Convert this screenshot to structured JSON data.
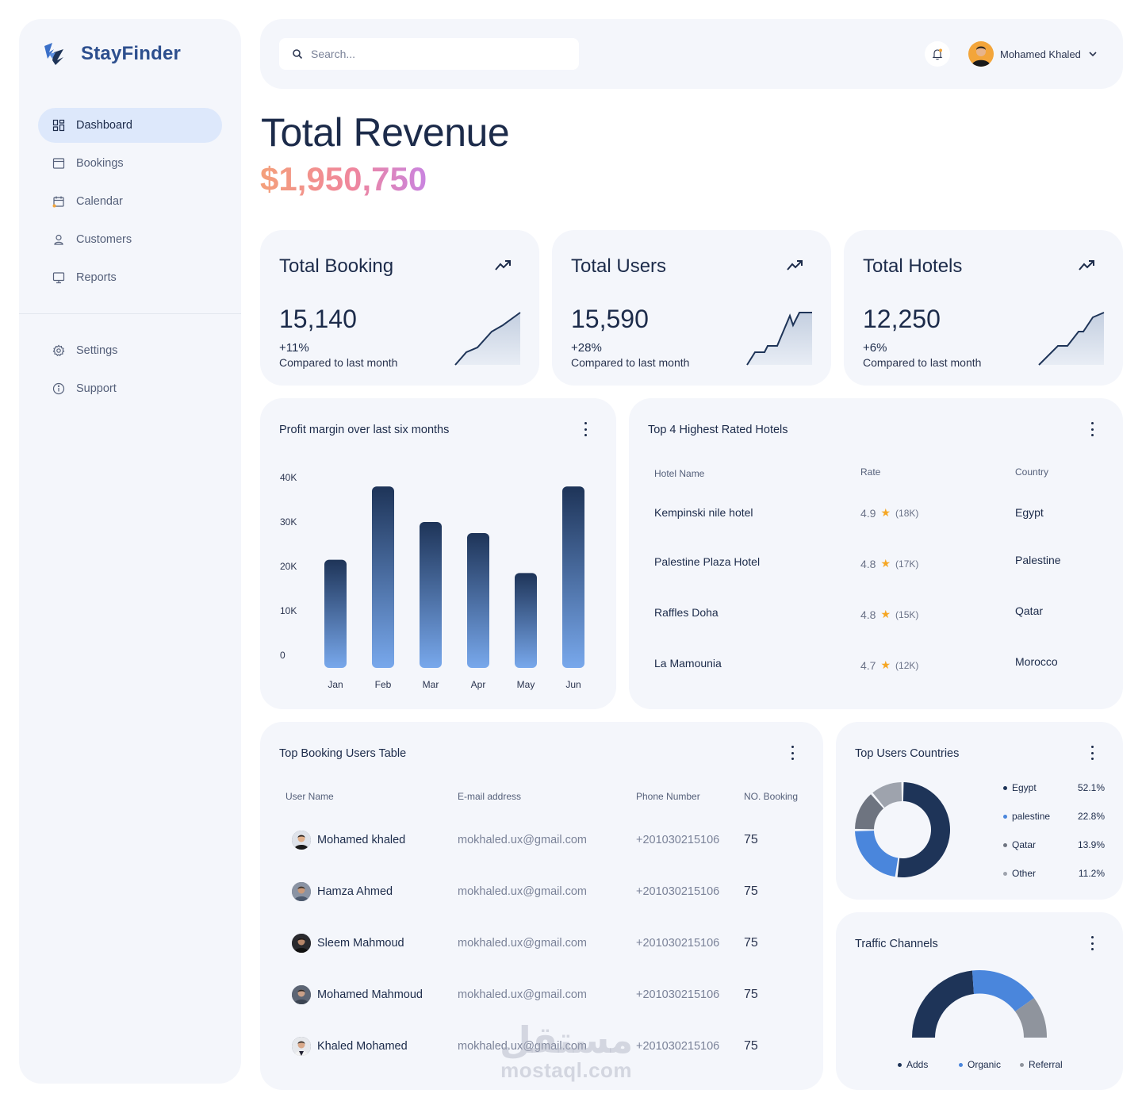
{
  "app": {
    "name": "StayFinder"
  },
  "sidebar": {
    "items": [
      {
        "label": "Dashboard",
        "icon": "dashboard-icon",
        "active": true
      },
      {
        "label": "Bookings",
        "icon": "bookings-icon"
      },
      {
        "label": "Calendar",
        "icon": "calendar-icon"
      },
      {
        "label": "Customers",
        "icon": "customers-icon"
      },
      {
        "label": "Reports",
        "icon": "reports-icon"
      }
    ],
    "bottom": [
      {
        "label": "Settings",
        "icon": "gear-icon"
      },
      {
        "label": "Support",
        "icon": "info-icon"
      }
    ]
  },
  "header": {
    "search_placeholder": "Search...",
    "user_name": "Mohamed Khaled"
  },
  "revenue": {
    "title": "Total Revenue",
    "amount": "$1,950,750"
  },
  "stats": [
    {
      "title": "Total Booking",
      "value": "15,140",
      "change": "+11%",
      "compare": "Compared to last month"
    },
    {
      "title": "Total Users",
      "value": "15,590",
      "change": "+28%",
      "compare": "Compared to last month"
    },
    {
      "title": "Total Hotels",
      "value": "12,250",
      "change": "+6%",
      "compare": "Compared to last month"
    }
  ],
  "profit": {
    "title": "Profit margin over last six months"
  },
  "chart_data": {
    "type": "bar",
    "title": "Profit margin over last six months",
    "categories": [
      "Jan",
      "Feb",
      "Mar",
      "Apr",
      "May",
      "Jun"
    ],
    "values": [
      21500,
      38000,
      30000,
      27500,
      18500,
      38000
    ],
    "ylim": [
      0,
      40000
    ],
    "yticks": [
      0,
      10000,
      20000,
      30000,
      40000
    ],
    "ytick_labels": [
      "0",
      "10K",
      "20K",
      "30K",
      "40K"
    ],
    "xlabel": "",
    "ylabel": "",
    "grid": false
  },
  "hotels": {
    "title": "Top 4 Highest Rated Hotels",
    "headers": {
      "name": "Hotel Name",
      "rate": "Rate",
      "country": "Country"
    },
    "rows": [
      {
        "name": "Kempinski nile hotel",
        "rate": "4.9",
        "reviews": "(18K)",
        "country": "Egypt"
      },
      {
        "name": "Palestine Plaza Hotel",
        "rate": "4.8",
        "reviews": "(17K)",
        "country": "Palestine"
      },
      {
        "name": "Raffles Doha",
        "rate": "4.8",
        "reviews": "(15K)",
        "country": "Qatar"
      },
      {
        "name": "La Mamounia",
        "rate": "4.7",
        "reviews": "(12K)",
        "country": "Morocco"
      }
    ]
  },
  "users_table": {
    "title": "Top Booking Users Table",
    "headers": {
      "name": "User Name",
      "email": "E-mail address",
      "phone": "Phone Number",
      "count": "NO. Booking"
    },
    "rows": [
      {
        "name": "Mohamed khaled",
        "email": "mokhaled.ux@gmail.com",
        "phone": "+201030215106",
        "count": "75"
      },
      {
        "name": "Hamza Ahmed",
        "email": "mokhaled.ux@gmail.com",
        "phone": "+201030215106",
        "count": "75"
      },
      {
        "name": "Sleem Mahmoud",
        "email": "mokhaled.ux@gmail.com",
        "phone": "+201030215106",
        "count": "75"
      },
      {
        "name": "Mohamed Mahmoud",
        "email": "mokhaled.ux@gmail.com",
        "phone": "+201030215106",
        "count": "75"
      },
      {
        "name": "Khaled Mohamed",
        "email": "mokhaled.ux@gmail.com",
        "phone": "+201030215106",
        "count": "75"
      }
    ]
  },
  "countries": {
    "title": "Top Users Countries",
    "items": [
      {
        "label": "Egypt",
        "value": "52.1%",
        "color": "#1e3458"
      },
      {
        "label": "palestine",
        "value": "22.8%",
        "color": "#4a86dc"
      },
      {
        "label": "Qatar",
        "value": "13.9%",
        "color": "#6e7480"
      },
      {
        "label": "Other",
        "value": "11.2%",
        "color": "#9ea3ad"
      }
    ]
  },
  "traffic": {
    "title": "Traffic Channels",
    "items": [
      {
        "label": "Adds",
        "color": "#1e3458"
      },
      {
        "label": "Organic",
        "color": "#4a86dc"
      },
      {
        "label": "Referral",
        "color": "#8f949d"
      }
    ]
  },
  "watermark": {
    "arabic": "مستقل",
    "latin": "mostaql.com"
  }
}
